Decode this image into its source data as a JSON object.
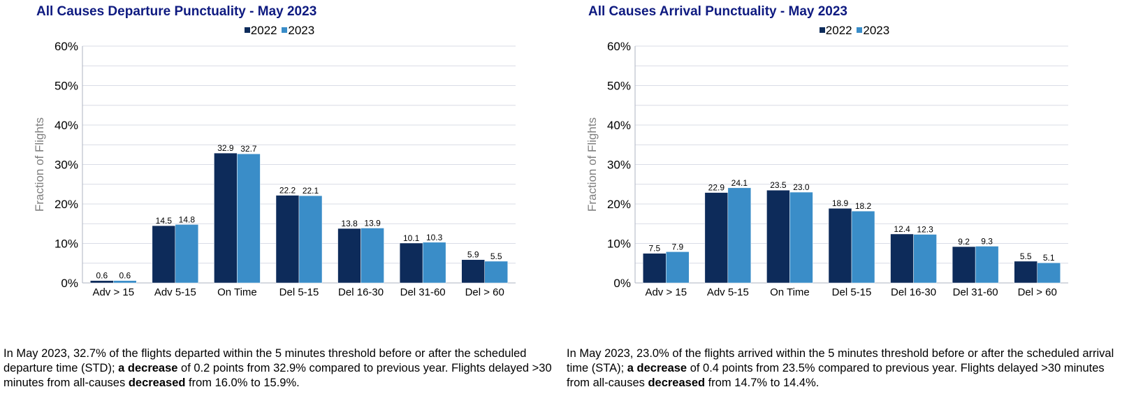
{
  "colors": {
    "title": "#0e1a80",
    "series_2022": "#0d2b5a",
    "series_2023": "#3a8dc8",
    "grid": "#d9dce6",
    "axis_label": "#7f7f7f"
  },
  "chart_data": [
    {
      "type": "bar",
      "title": "All Causes Departure Punctuality - May 2023",
      "xlabel": "",
      "ylabel": "Fraction of Flights",
      "ylim": [
        0,
        60
      ],
      "yticks": [
        "0%",
        "10%",
        "20%",
        "30%",
        "40%",
        "50%",
        "60%"
      ],
      "grid": true,
      "legend_position": "top-center",
      "categories": [
        "Adv > 15",
        "Adv 5-15",
        "On Time",
        "Del 5-15",
        "Del 16-30",
        "Del 31-60",
        "Del > 60"
      ],
      "series": [
        {
          "name": "2022",
          "values": [
            0.6,
            14.5,
            32.9,
            22.2,
            13.8,
            10.1,
            5.9
          ],
          "labels": [
            "0.6",
            "14.5",
            "32.9",
            "22.2",
            "13.8",
            "10.1",
            "5.9"
          ]
        },
        {
          "name": "2023",
          "values": [
            0.6,
            14.8,
            32.7,
            22.1,
            13.9,
            10.3,
            5.5
          ],
          "labels": [
            "0.6",
            "14.8",
            "32.7",
            "22.1",
            "13.9",
            "10.3",
            "5.5"
          ]
        }
      ]
    },
    {
      "type": "bar",
      "title": "All Causes Arrival Punctuality - May 2023",
      "xlabel": "",
      "ylabel": "Fraction of Flights",
      "ylim": [
        0,
        60
      ],
      "yticks": [
        "0%",
        "10%",
        "20%",
        "30%",
        "40%",
        "50%",
        "60%"
      ],
      "grid": true,
      "legend_position": "top-center",
      "categories": [
        "Adv > 15",
        "Adv 5-15",
        "On Time",
        "Del 5-15",
        "Del 16-30",
        "Del 31-60",
        "Del > 60"
      ],
      "series": [
        {
          "name": "2022",
          "values": [
            7.5,
            22.9,
            23.5,
            18.9,
            12.4,
            9.2,
            5.5
          ],
          "labels": [
            "7.5",
            "22.9",
            "23.5",
            "18.9",
            "12.4",
            "9.2",
            "5.5"
          ]
        },
        {
          "name": "2023",
          "values": [
            7.9,
            24.1,
            23.0,
            18.2,
            12.3,
            9.3,
            5.1
          ],
          "labels": [
            "7.9",
            "24.1",
            "23.0",
            "18.2",
            "12.3",
            "9.3",
            "5.1"
          ]
        }
      ]
    }
  ],
  "captions": [
    {
      "p1": "In May 2023, 32.7% of the flights departed within the 5 minutes threshold before or after the scheduled departure time (STD); ",
      "b1": "a decrease",
      "p2": " of 0.2 points from 32.9% compared to previous year. Flights delayed >30 minutes from all-causes ",
      "b2": "decreased",
      "p3": " from 16.0% to 15.9%."
    },
    {
      "p1": "In May 2023, 23.0% of the flights arrived within the 5 minutes threshold before or after the scheduled arrival time (STA); ",
      "b1": "a decrease",
      "p2": " of 0.4 points from 23.5% compared to previous year. Flights delayed >30 minutes from all-causes ",
      "b2": "decreased",
      "p3": " from 14.7% to 14.4%."
    }
  ]
}
